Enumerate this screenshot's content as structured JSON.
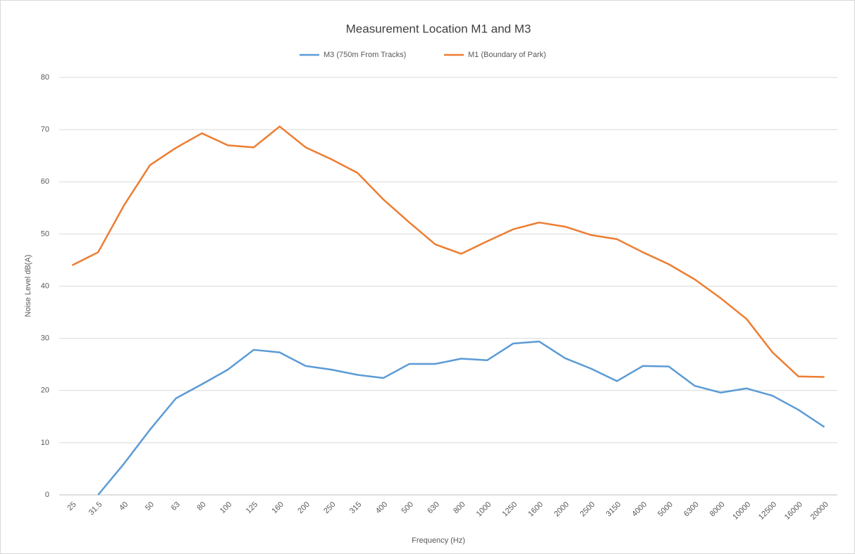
{
  "chart_data": {
    "type": "line",
    "title": "Measurement Location M1 and M3",
    "xlabel": "Frequency (Hz)",
    "ylabel": "Noise Level dB(A)",
    "categories": [
      "25",
      "31.5",
      "40",
      "50",
      "63",
      "80",
      "100",
      "125",
      "160",
      "200",
      "250",
      "315",
      "400",
      "500",
      "630",
      "800",
      "1000",
      "1250",
      "1600",
      "2000",
      "2500",
      "3150",
      "4000",
      "5000",
      "6300",
      "8000",
      "10000",
      "12500",
      "16000",
      "20000"
    ],
    "series": [
      {
        "name": "M3 (750m From Tracks)",
        "color": "#5b9bd5",
        "values": [
          null,
          0,
          6,
          12.5,
          18.5,
          21.2,
          24,
          27.8,
          27.3,
          24.7,
          24,
          23,
          22.4,
          25.1,
          25.1,
          26.1,
          25.8,
          29,
          29.4,
          26.2,
          24.2,
          21.8,
          24.7,
          24.6,
          20.9,
          19.6,
          20.4,
          19,
          16.3,
          13
        ]
      },
      {
        "name": "M1 (Boundary of Park)",
        "color": "#ed7d31",
        "values": [
          44,
          46.5,
          55.5,
          63.2,
          66.5,
          69.3,
          67,
          66.6,
          70.6,
          66.6,
          64.3,
          61.7,
          56.6,
          52.2,
          48,
          46.2,
          48.6,
          50.9,
          52.2,
          51.4,
          49.8,
          49,
          46.5,
          44.2,
          41.3,
          37.7,
          33.7,
          27.3,
          22.7,
          22.6
        ]
      }
    ],
    "ylim": [
      0,
      80
    ],
    "yticks": [
      0,
      10,
      20,
      30,
      40,
      50,
      60,
      70,
      80
    ],
    "grid": true,
    "legend": "top"
  }
}
